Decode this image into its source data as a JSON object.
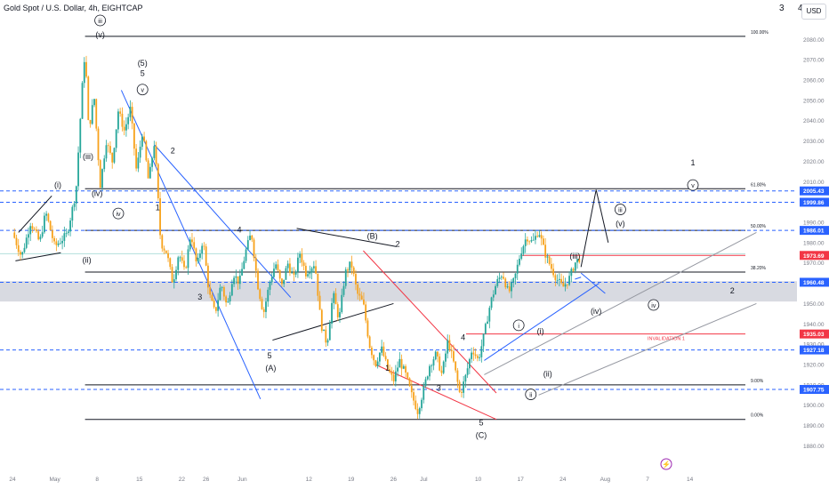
{
  "header": {
    "title": "Gold Spot / U.S. Dollar, 4h, EIGHTCAP",
    "corner_a": "3",
    "corner_b": "4",
    "currency": "USD"
  },
  "chart_data": {
    "type": "candlestick",
    "ylim": [
      1873,
      2094
    ],
    "y_ticks": [
      1880,
      1890,
      1900,
      1910,
      1920,
      1930,
      1940,
      1950,
      1960,
      1970,
      1980,
      1990,
      2000,
      2010,
      2020,
      2030,
      2040,
      2050,
      2060,
      2070,
      2080
    ],
    "x_ticks": [
      {
        "label": "24",
        "x": 0
      },
      {
        "label": "May",
        "x": 7
      },
      {
        "label": "8",
        "x": 14
      },
      {
        "label": "15",
        "x": 21
      },
      {
        "label": "22",
        "x": 28
      },
      {
        "label": "26",
        "x": 32
      },
      {
        "label": "Jun",
        "x": 38
      },
      {
        "label": "12",
        "x": 49
      },
      {
        "label": "19",
        "x": 56
      },
      {
        "label": "26",
        "x": 63
      },
      {
        "label": "Jul",
        "x": 68
      },
      {
        "label": "10",
        "x": 77
      },
      {
        "label": "17",
        "x": 84
      },
      {
        "label": "24",
        "x": 91
      },
      {
        "label": "Aug",
        "x": 98
      },
      {
        "label": "7",
        "x": 105
      },
      {
        "label": "14",
        "x": 112
      }
    ],
    "price_path": [
      [
        0,
        1985
      ],
      [
        1.5,
        1973
      ],
      [
        3,
        1990
      ],
      [
        4.5,
        1980
      ],
      [
        5.5,
        1995
      ],
      [
        7,
        1978
      ],
      [
        9,
        1984
      ],
      [
        10.5,
        2005
      ],
      [
        11.5,
        2055
      ],
      [
        12,
        2075
      ],
      [
        12.6,
        2035
      ],
      [
        13.5,
        2052
      ],
      [
        14.5,
        2008
      ],
      [
        15.5,
        2030
      ],
      [
        16.5,
        2020
      ],
      [
        17.5,
        2045
      ],
      [
        18.5,
        2035
      ],
      [
        19.5,
        2046
      ],
      [
        20.5,
        2015
      ],
      [
        21.5,
        2035
      ],
      [
        22.5,
        2010
      ],
      [
        23.5,
        2030
      ],
      [
        24.5,
        1980
      ],
      [
        25.5,
        1975
      ],
      [
        26.5,
        1960
      ],
      [
        27.5,
        1975
      ],
      [
        28.5,
        1965
      ],
      [
        29.5,
        1985
      ],
      [
        30.5,
        1968
      ],
      [
        31.5,
        1982
      ],
      [
        32.5,
        1955
      ],
      [
        33.5,
        1945
      ],
      [
        34.5,
        1960
      ],
      [
        35.5,
        1948
      ],
      [
        36.5,
        1965
      ],
      [
        37.5,
        1960
      ],
      [
        38.5,
        1975
      ],
      [
        39.5,
        1985
      ],
      [
        40.5,
        1960
      ],
      [
        41.5,
        1945
      ],
      [
        42.5,
        1960
      ],
      [
        43.5,
        1970
      ],
      [
        44.5,
        1958
      ],
      [
        45.5,
        1970
      ],
      [
        46.5,
        1962
      ],
      [
        47.5,
        1975
      ],
      [
        48.5,
        1965
      ],
      [
        50,
        1970
      ],
      [
        51,
        1940
      ],
      [
        52,
        1930
      ],
      [
        53,
        1955
      ],
      [
        54,
        1942
      ],
      [
        55,
        1965
      ],
      [
        56,
        1970
      ],
      [
        57,
        1955
      ],
      [
        58,
        1950
      ],
      [
        59,
        1930
      ],
      [
        60,
        1920
      ],
      [
        61,
        1928
      ],
      [
        62,
        1918
      ],
      [
        63,
        1912
      ],
      [
        64,
        1922
      ],
      [
        65,
        1915
      ],
      [
        66,
        1905
      ],
      [
        67,
        1897
      ],
      [
        68,
        1908
      ],
      [
        69,
        1920
      ],
      [
        70,
        1925
      ],
      [
        71,
        1915
      ],
      [
        72,
        1932
      ],
      [
        73,
        1920
      ],
      [
        74,
        1905
      ],
      [
        75,
        1915
      ],
      [
        76,
        1928
      ],
      [
        77,
        1922
      ],
      [
        78,
        1935
      ],
      [
        79,
        1950
      ],
      [
        80,
        1960
      ],
      [
        81,
        1965
      ],
      [
        82,
        1955
      ],
      [
        83,
        1962
      ],
      [
        84,
        1975
      ],
      [
        85,
        1983
      ],
      [
        86,
        1980
      ],
      [
        87,
        1986
      ],
      [
        88,
        1975
      ],
      [
        89,
        1968
      ],
      [
        90,
        1962
      ],
      [
        91,
        1958
      ],
      [
        92,
        1962
      ],
      [
        93,
        1970
      ],
      [
        94,
        1973
      ]
    ],
    "projection": [
      [
        94,
        1968
      ],
      [
        96.5,
        2006
      ],
      [
        98.5,
        1980
      ]
    ],
    "horizontal_levels": [
      {
        "price": 2081.5,
        "style": "solid",
        "color": "#131722",
        "from": 12,
        "label": "100.00%"
      },
      {
        "price": 2006.5,
        "style": "solid",
        "color": "#131722",
        "from": 12,
        "label": "61.80%"
      },
      {
        "price": 1986.0,
        "style": "solid",
        "color": "#131722",
        "from": 12,
        "label": "50.00%"
      },
      {
        "price": 1965.5,
        "style": "solid",
        "color": "#131722",
        "from": 12,
        "label": "38.20%"
      },
      {
        "price": 1910.0,
        "style": "solid",
        "color": "#131722",
        "from": 12,
        "label": "9.00%"
      },
      {
        "price": 1893.0,
        "style": "solid",
        "color": "#131722",
        "from": 12,
        "label": "0.00%"
      },
      {
        "price": 2005.43,
        "style": "dashed",
        "color": "#2962ff",
        "from": 0
      },
      {
        "price": 1999.86,
        "style": "dashed",
        "color": "#2962ff",
        "from": 0
      },
      {
        "price": 1986.01,
        "style": "dashed",
        "color": "#2962ff",
        "from": 0
      },
      {
        "price": 1960.48,
        "style": "dashed",
        "color": "#2962ff",
        "from": 0
      },
      {
        "price": 1927.18,
        "style": "dashed",
        "color": "#2962ff",
        "from": 0
      },
      {
        "price": 1907.75,
        "style": "dashed",
        "color": "#2962ff",
        "from": 0
      },
      {
        "price": 1973.69,
        "style": "solid",
        "color": "#f23645",
        "from": 84
      },
      {
        "price": 1935.03,
        "style": "solid",
        "color": "#f23645",
        "from": 75
      },
      {
        "price": 1974.5,
        "style": "solid",
        "color": "#b2dfdb",
        "from": 0
      }
    ],
    "zone": {
      "from": 1961,
      "to": 1951
    },
    "price_labels": [
      {
        "text": "2005.43",
        "price": 2005.43,
        "color": "#2962ff"
      },
      {
        "text": "1999.86",
        "price": 1999.86,
        "color": "#2962ff"
      },
      {
        "text": "1986.01",
        "price": 1986.01,
        "color": "#2962ff"
      },
      {
        "text": "1973.69",
        "price": 1973.69,
        "color": "#f23645"
      },
      {
        "text": "1960.48",
        "price": 1960.48,
        "color": "#2962ff"
      },
      {
        "text": "1935.03",
        "price": 1935.03,
        "color": "#f23645"
      },
      {
        "text": "1927.18",
        "price": 1927.18,
        "color": "#2962ff"
      },
      {
        "text": "1907.75",
        "price": 1907.75,
        "color": "#2962ff"
      }
    ],
    "trend_lines": [
      {
        "pts": [
          [
            0.5,
            1971
          ],
          [
            8,
            1975
          ]
        ],
        "color": "#131722"
      },
      {
        "pts": [
          [
            1,
            1985
          ],
          [
            6.5,
            2003
          ]
        ],
        "color": "#131722"
      },
      {
        "pts": [
          [
            18,
            2055
          ],
          [
            41,
            1903
          ]
        ],
        "color": "#2962ff"
      },
      {
        "pts": [
          [
            23.5,
            2028
          ],
          [
            46,
            1953
          ]
        ],
        "color": "#2962ff"
      },
      {
        "pts": [
          [
            43,
            1932
          ],
          [
            63,
            1950
          ]
        ],
        "color": "#131722"
      },
      {
        "pts": [
          [
            47,
            1987
          ],
          [
            63.5,
            1978
          ]
        ],
        "color": "#131722"
      },
      {
        "pts": [
          [
            58,
            1976
          ],
          [
            80,
            1906
          ]
        ],
        "color": "#f23645"
      },
      {
        "pts": [
          [
            60,
            1920
          ],
          [
            80,
            1893
          ]
        ],
        "color": "#f23645"
      },
      {
        "pts": [
          [
            78,
            1915
          ],
          [
            123,
            1985
          ]
        ],
        "color": "#9598a1"
      },
      {
        "pts": [
          [
            87,
            1905
          ],
          [
            123,
            1950
          ]
        ],
        "color": "#9598a1"
      },
      {
        "pts": [
          [
            78,
            1922
          ],
          [
            97,
            1960
          ]
        ],
        "color": "#2962ff"
      },
      {
        "pts": [
          [
            93,
            1962
          ],
          [
            94,
            1963
          ]
        ],
        "color": "#2962ff"
      },
      {
        "pts": [
          [
            94,
            1965
          ],
          [
            98,
            1955
          ]
        ],
        "color": "#2962ff"
      }
    ],
    "wave_labels": [
      {
        "text": "iii",
        "x": 14.5,
        "price": 2088,
        "circled": true
      },
      {
        "text": "(v)",
        "x": 14.5,
        "price": 2081
      },
      {
        "text": "(5)",
        "x": 21.5,
        "price": 2067
      },
      {
        "text": "5",
        "x": 21.5,
        "price": 2062
      },
      {
        "text": "v",
        "x": 21.5,
        "price": 2054,
        "circled": true
      },
      {
        "text": "(iii)",
        "x": 12.5,
        "price": 2021
      },
      {
        "text": "(iv)",
        "x": 14,
        "price": 2003
      },
      {
        "text": "iv",
        "x": 17.5,
        "price": 1993,
        "circled": true
      },
      {
        "text": "(i)",
        "x": 7.5,
        "price": 2007
      },
      {
        "text": "(ii)",
        "x": 12.3,
        "price": 1970
      },
      {
        "text": "2",
        "x": 26.5,
        "price": 2024
      },
      {
        "text": "1",
        "x": 24,
        "price": 1996
      },
      {
        "text": "4",
        "x": 37.5,
        "price": 1985
      },
      {
        "text": "3",
        "x": 31,
        "price": 1952
      },
      {
        "text": "5",
        "x": 42.5,
        "price": 1923
      },
      {
        "text": "(A)",
        "x": 42.7,
        "price": 1917
      },
      {
        "text": "(B)",
        "x": 59.5,
        "price": 1982
      },
      {
        "text": "2",
        "x": 63.7,
        "price": 1978
      },
      {
        "text": "1",
        "x": 62,
        "price": 1917
      },
      {
        "text": "3",
        "x": 70.5,
        "price": 1907
      },
      {
        "text": "4",
        "x": 74.5,
        "price": 1932
      },
      {
        "text": "5",
        "x": 77.5,
        "price": 1890
      },
      {
        "text": "(C)",
        "x": 77.5,
        "price": 1884
      },
      {
        "text": "i",
        "x": 83.7,
        "price": 1938,
        "circled": true
      },
      {
        "text": "(i)",
        "x": 87.3,
        "price": 1935
      },
      {
        "text": "(ii)",
        "x": 88.5,
        "price": 1914
      },
      {
        "text": "ii",
        "x": 85.7,
        "price": 1904,
        "circled": true
      },
      {
        "text": "(iii)",
        "x": 93,
        "price": 1972
      },
      {
        "text": "(iv)",
        "x": 96.5,
        "price": 1945
      },
      {
        "text": "iii",
        "x": 100.5,
        "price": 1995,
        "circled": true
      },
      {
        "text": "(v)",
        "x": 100.5,
        "price": 1988
      },
      {
        "text": "iv",
        "x": 106,
        "price": 1948,
        "circled": true
      },
      {
        "text": "1",
        "x": 112.5,
        "price": 2018
      },
      {
        "text": "v",
        "x": 112.5,
        "price": 2007,
        "circled": true
      },
      {
        "text": "2",
        "x": 119,
        "price": 1955
      }
    ],
    "annotations": [
      {
        "text": "INVALIDATION 1",
        "x": 105,
        "price": 1932,
        "color": "#f23645"
      }
    ]
  },
  "footer": {
    "event_icon": "lightning-icon"
  }
}
